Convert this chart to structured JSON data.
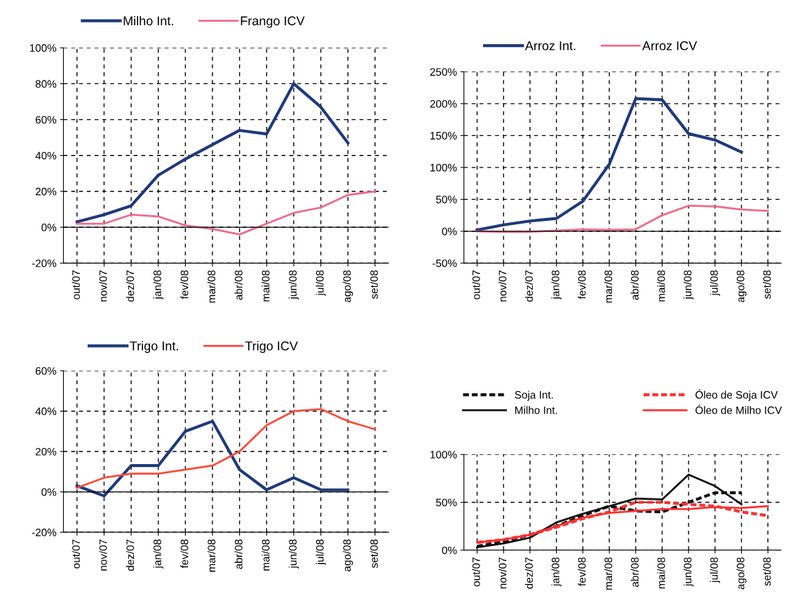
{
  "chart_data": [
    {
      "type": "line",
      "categories": [
        "out/07",
        "nov/07",
        "dez/07",
        "jan/08",
        "fev/08",
        "mar/08",
        "abr/08",
        "mai/08",
        "jun/08",
        "jul/08",
        "ago/08",
        "set/08"
      ],
      "ylim": [
        -20,
        100
      ],
      "yticks": [
        {
          "value": -20,
          "label": "-20%"
        },
        {
          "value": 0,
          "label": "0%"
        },
        {
          "value": 20,
          "label": "20%"
        },
        {
          "value": 40,
          "label": "40%"
        },
        {
          "value": 60,
          "label": "60%"
        },
        {
          "value": 80,
          "label": "80%"
        },
        {
          "value": 100,
          "label": "100%"
        }
      ],
      "grid": true,
      "legend": "top",
      "series": [
        {
          "name": "Milho Int.",
          "color": "#1f3a7a",
          "line_style": "solid",
          "values": [
            3,
            7,
            12,
            29,
            38,
            46,
            54,
            52,
            80,
            67,
            47,
            null
          ]
        },
        {
          "name": "Frango ICV",
          "color": "#f06a8a",
          "line_style": "solid",
          "values": [
            2,
            2,
            7,
            6,
            1,
            -1,
            -4,
            2,
            8,
            11,
            18,
            20
          ]
        }
      ]
    },
    {
      "type": "line",
      "categories": [
        "out/07",
        "nov/07",
        "dez/07",
        "jan/08",
        "fev/08",
        "mar/08",
        "abr/08",
        "mai/08",
        "jun/08",
        "jul/08",
        "ago/08",
        "set/08"
      ],
      "ylim": [
        -50,
        250
      ],
      "yticks": [
        {
          "value": -50,
          "label": "-50%"
        },
        {
          "value": 0,
          "label": "0%"
        },
        {
          "value": 50,
          "label": "50%"
        },
        {
          "value": 100,
          "label": "100%"
        },
        {
          "value": 150,
          "label": "150%"
        },
        {
          "value": 200,
          "label": "200%"
        },
        {
          "value": 250,
          "label": "250%"
        }
      ],
      "grid": true,
      "legend": "top",
      "series": [
        {
          "name": "Arroz Int.",
          "color": "#1f3a7a",
          "line_style": "solid",
          "values": [
            2,
            10,
            16,
            20,
            47,
            105,
            208,
            206,
            153,
            143,
            124,
            null
          ]
        },
        {
          "name": "Arroz ICV",
          "color": "#f06a8a",
          "line_style": "solid",
          "values": [
            0,
            -1,
            -1,
            1,
            3,
            2,
            3,
            25,
            40,
            39,
            34,
            32
          ]
        }
      ]
    },
    {
      "type": "line",
      "categories": [
        "out/07",
        "nov/07",
        "dez/07",
        "jan/08",
        "fev/08",
        "mar/08",
        "abr/08",
        "mai/08",
        "jun/08",
        "jul/08",
        "ago/08",
        "set/08"
      ],
      "ylim": [
        -20,
        60
      ],
      "yticks": [
        {
          "value": -20,
          "label": "-20%"
        },
        {
          "value": 0,
          "label": "0%"
        },
        {
          "value": 20,
          "label": "20%"
        },
        {
          "value": 40,
          "label": "40%"
        },
        {
          "value": 60,
          "label": "60%"
        }
      ],
      "grid": true,
      "legend": "top",
      "series": [
        {
          "name": "Trigo Int.",
          "color": "#1f3a7a",
          "line_style": "solid",
          "values": [
            3,
            -2,
            13,
            13,
            30,
            35,
            11,
            1,
            7,
            1,
            1,
            null
          ]
        },
        {
          "name": "Trigo ICV",
          "color": "#ff4a3a",
          "line_style": "solid",
          "values": [
            2,
            7,
            9,
            9,
            11,
            13,
            20,
            33,
            40,
            41,
            35,
            31
          ]
        }
      ]
    },
    {
      "type": "line",
      "categories": [
        "out/07",
        "nov/07",
        "dez/07",
        "jan/08",
        "fev/08",
        "mar/08",
        "abr/08",
        "mai/08",
        "jun/08",
        "jul/08",
        "ago/08",
        "set/08"
      ],
      "ylim": [
        0,
        100
      ],
      "yticks": [
        {
          "value": 0,
          "label": "0%"
        },
        {
          "value": 50,
          "label": "50%"
        },
        {
          "value": 100,
          "label": "100%"
        }
      ],
      "grid": true,
      "legend": "top",
      "series": [
        {
          "name": "Soja Int.",
          "color": "#111111",
          "line_style": "dashed",
          "values": [
            4,
            9,
            16,
            25,
            36,
            46,
            41,
            40,
            50,
            60,
            60,
            null
          ]
        },
        {
          "name": "Milho Int.",
          "color": "#111111",
          "line_style": "solid",
          "values": [
            3,
            7,
            13,
            29,
            38,
            46,
            54,
            53,
            79,
            67,
            48,
            null
          ]
        },
        {
          "name": "Óleo de Soja ICV",
          "color": "#ff3030",
          "line_style": "dashed",
          "values": [
            8,
            11,
            16,
            24,
            33,
            40,
            50,
            50,
            48,
            46,
            40,
            36
          ]
        },
        {
          "name": "Óleo de Milho ICV",
          "color": "#ff3030",
          "line_style": "solid",
          "values": [
            8,
            11,
            16,
            25,
            34,
            39,
            41,
            43,
            43,
            45,
            44,
            46
          ]
        }
      ]
    }
  ]
}
